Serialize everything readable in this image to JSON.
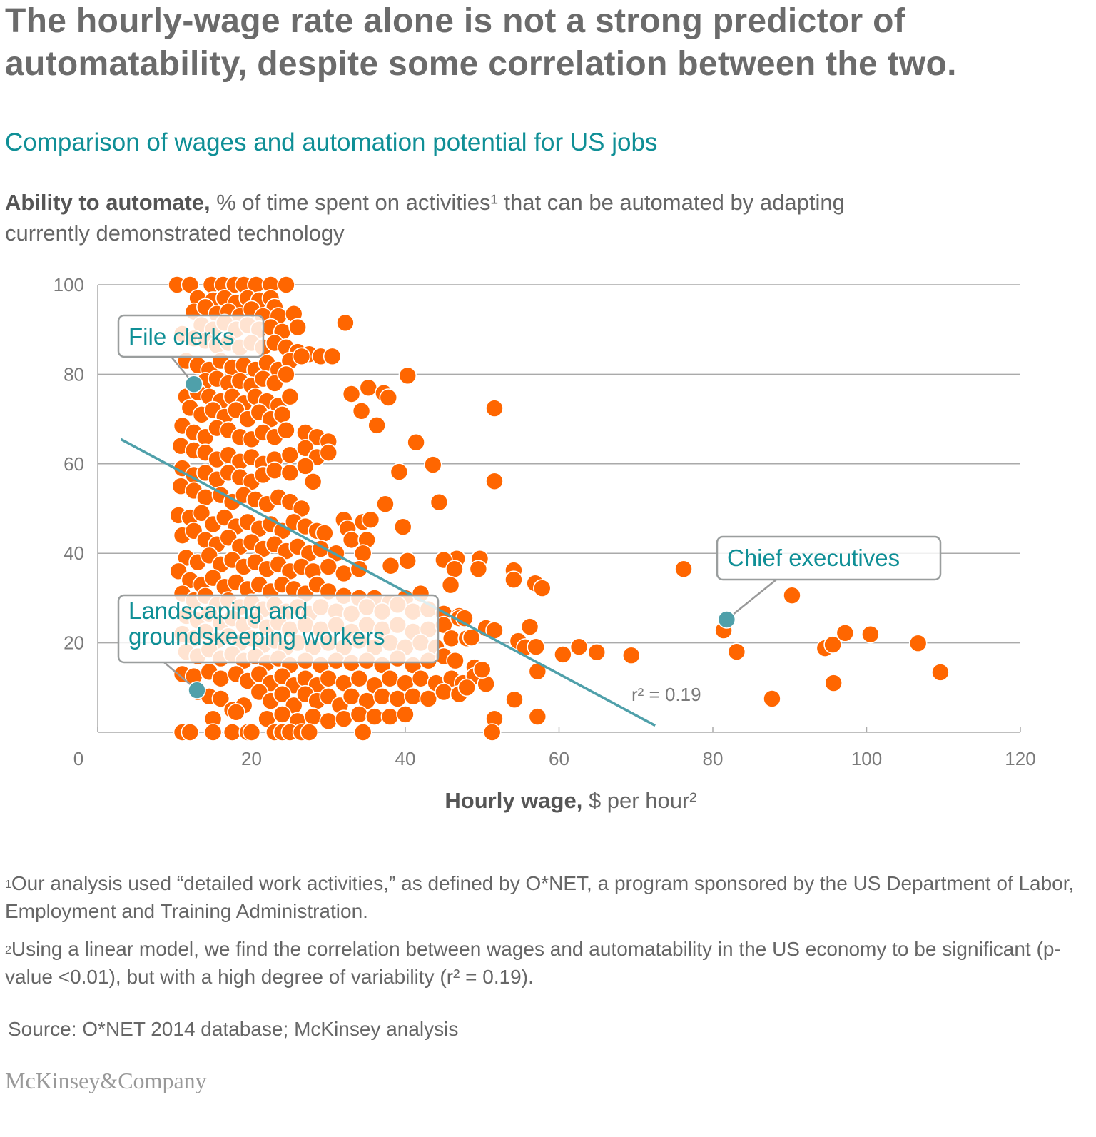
{
  "title": "The hourly-wage rate alone is not a strong predictor of automatability, despite some correlation between the two.",
  "subtitle": "Comparison of wages and automation potential for US jobs",
  "y_axis_label": {
    "bold": "Ability to automate,",
    "rest": " % of time spent on activities¹ that can be automated by adapting currently demonstrated technology"
  },
  "x_axis_label": {
    "bold": "Hourly wage,",
    "rest": " $ per hour²"
  },
  "footnotes": [
    {
      "mark": "1",
      "text": "Our analysis used “detailed work activities,” as defined by O*NET, a program sponsored by the US Department of Labor, Employment and Training Administration."
    },
    {
      "mark": "2",
      "text": "Using a linear model, we find the correlation between wages and automatability in the US economy to be significant (p-value <0.01), but with a high degree of variability (r² = 0.19)."
    }
  ],
  "source": "Source: O*NET 2014 database; McKinsey analysis",
  "logo": "McKinsey&Company",
  "chart_data": {
    "type": "scatter",
    "xlim": [
      0,
      120
    ],
    "ylim": [
      0,
      100
    ],
    "x_ticks": [
      0,
      20,
      40,
      60,
      80,
      100,
      120
    ],
    "y_ticks": [
      0,
      20,
      40,
      60,
      80,
      100
    ],
    "y_tick_labels": [
      "",
      "20",
      "40",
      "60",
      "80",
      "100"
    ],
    "x_tick_labels": [
      "0",
      "20",
      "40",
      "60",
      "80",
      "100",
      "120"
    ],
    "grid": "horizontal",
    "colors": {
      "points": "#FF6600",
      "highlight": "#4FA0AA",
      "trend": "#4FA0AA",
      "annotation_text": "#0F8F96"
    },
    "trendline": {
      "from": [
        3,
        65.5
      ],
      "to": [
        72.5,
        1.5
      ],
      "label": "r² = 0.19"
    },
    "highlights": [
      {
        "label": "File clerks",
        "x": 12.5,
        "y": 77.8
      },
      {
        "label": "Chief executives",
        "x": 81.8,
        "y": 25.2
      },
      {
        "label": "Landscaping and groundskeeping workers",
        "label_lines": [
          "Landscaping and",
          "groundskeeping workers"
        ],
        "x": 12.9,
        "y": 9.4
      }
    ],
    "points": [
      [
        10.3,
        100
      ],
      [
        12,
        100
      ],
      [
        14.8,
        100
      ],
      [
        16.3,
        100
      ],
      [
        17.8,
        100
      ],
      [
        19,
        100
      ],
      [
        20.6,
        100
      ],
      [
        22.5,
        100
      ],
      [
        24.5,
        100
      ],
      [
        13,
        97
      ],
      [
        15,
        96.5
      ],
      [
        16.5,
        97
      ],
      [
        18,
        96
      ],
      [
        19.5,
        97
      ],
      [
        21,
        96.5
      ],
      [
        22.5,
        97
      ],
      [
        23,
        95
      ],
      [
        12.5,
        94
      ],
      [
        14,
        95
      ],
      [
        15.5,
        93.5
      ],
      [
        17,
        94
      ],
      [
        18.5,
        93
      ],
      [
        20,
        94.5
      ],
      [
        21.5,
        93
      ],
      [
        23.5,
        93
      ],
      [
        25.5,
        93.5
      ],
      [
        13.5,
        91
      ],
      [
        15,
        90
      ],
      [
        16.5,
        91.5
      ],
      [
        18,
        90
      ],
      [
        19.5,
        91
      ],
      [
        21,
        90
      ],
      [
        22.5,
        90.5
      ],
      [
        24,
        89.5
      ],
      [
        26,
        90.5
      ],
      [
        11,
        89
      ],
      [
        12.5,
        88
      ],
      [
        14,
        87.5
      ],
      [
        15.5,
        86.5
      ],
      [
        17,
        87
      ],
      [
        18.5,
        86
      ],
      [
        20,
        87
      ],
      [
        21.5,
        86
      ],
      [
        23,
        87
      ],
      [
        24.5,
        86
      ],
      [
        26,
        85
      ],
      [
        27.5,
        84.5
      ],
      [
        29,
        84
      ],
      [
        30.5,
        84
      ],
      [
        32.2,
        91.5
      ],
      [
        11.5,
        83
      ],
      [
        13,
        82
      ],
      [
        14.5,
        81
      ],
      [
        16,
        83
      ],
      [
        17.5,
        81.5
      ],
      [
        19,
        82
      ],
      [
        20.5,
        81
      ],
      [
        22,
        82.5
      ],
      [
        23.5,
        81
      ],
      [
        25,
        83
      ],
      [
        26.5,
        84
      ],
      [
        14,
        78.5
      ],
      [
        15.5,
        79
      ],
      [
        17,
        78
      ],
      [
        18.5,
        78.5
      ],
      [
        20,
        77.5
      ],
      [
        21.5,
        79
      ],
      [
        23,
        78
      ],
      [
        24.5,
        80
      ],
      [
        11.5,
        75
      ],
      [
        13,
        76
      ],
      [
        14.5,
        75
      ],
      [
        16,
        74
      ],
      [
        17.5,
        75
      ],
      [
        19,
        73.5
      ],
      [
        20.5,
        75
      ],
      [
        22,
        74
      ],
      [
        23.5,
        73
      ],
      [
        25,
        75
      ],
      [
        12,
        72.5
      ],
      [
        13.5,
        71
      ],
      [
        15,
        72
      ],
      [
        16.5,
        70.5
      ],
      [
        18,
        72
      ],
      [
        19.5,
        70
      ],
      [
        21,
        71.5
      ],
      [
        22.5,
        70
      ],
      [
        24,
        71
      ],
      [
        11,
        68.5
      ],
      [
        12.5,
        67
      ],
      [
        14,
        66
      ],
      [
        15.5,
        68
      ],
      [
        17,
        67.5
      ],
      [
        18.5,
        66
      ],
      [
        20,
        65.5
      ],
      [
        21.5,
        67
      ],
      [
        23,
        66
      ],
      [
        24.5,
        67.5
      ],
      [
        27,
        67
      ],
      [
        28.5,
        66
      ],
      [
        30,
        65
      ],
      [
        10.8,
        64
      ],
      [
        12.5,
        63
      ],
      [
        14,
        62.5
      ],
      [
        15.5,
        61
      ],
      [
        17,
        62
      ],
      [
        18.5,
        60.5
      ],
      [
        20,
        61.5
      ],
      [
        21.5,
        60
      ],
      [
        23,
        61
      ],
      [
        25,
        62
      ],
      [
        27,
        63.5
      ],
      [
        28.5,
        61.5
      ],
      [
        30,
        62.5
      ],
      [
        11,
        59
      ],
      [
        12.5,
        57.5
      ],
      [
        14,
        58
      ],
      [
        15.5,
        56.5
      ],
      [
        17,
        58
      ],
      [
        18.5,
        57
      ],
      [
        20,
        56
      ],
      [
        21.5,
        57.5
      ],
      [
        23,
        58.5
      ],
      [
        25,
        58
      ],
      [
        27,
        59.5
      ],
      [
        28,
        56
      ],
      [
        10.8,
        55
      ],
      [
        12.5,
        54
      ],
      [
        14,
        52.5
      ],
      [
        16,
        53
      ],
      [
        17.5,
        51.5
      ],
      [
        19,
        53
      ],
      [
        20.5,
        52
      ],
      [
        22,
        51
      ],
      [
        23.5,
        52.5
      ],
      [
        25,
        51.5
      ],
      [
        26.5,
        50
      ],
      [
        10.5,
        48.5
      ],
      [
        12,
        48
      ],
      [
        13.5,
        49
      ],
      [
        15,
        46.5
      ],
      [
        16.5,
        48
      ],
      [
        18,
        46
      ],
      [
        19.5,
        47
      ],
      [
        21,
        45.5
      ],
      [
        22.5,
        46.5
      ],
      [
        24,
        45
      ],
      [
        25.5,
        47
      ],
      [
        27,
        46
      ],
      [
        28.5,
        45
      ],
      [
        29.5,
        44.5
      ],
      [
        32,
        47.5
      ],
      [
        32.5,
        45.5
      ],
      [
        34.5,
        47
      ],
      [
        35.5,
        47.5
      ],
      [
        11,
        44
      ],
      [
        12.5,
        45
      ],
      [
        14,
        43
      ],
      [
        15.5,
        42
      ],
      [
        17,
        43.5
      ],
      [
        18.5,
        41.5
      ],
      [
        20,
        42.5
      ],
      [
        21.5,
        41
      ],
      [
        23,
        42
      ],
      [
        24.5,
        40.5
      ],
      [
        26,
        41.5
      ],
      [
        27.5,
        40
      ],
      [
        29,
        41
      ],
      [
        31,
        40
      ],
      [
        33,
        43
      ],
      [
        35,
        43
      ],
      [
        34.5,
        40
      ],
      [
        11.5,
        39
      ],
      [
        13,
        38
      ],
      [
        14.5,
        39.5
      ],
      [
        16,
        37.5
      ],
      [
        17.5,
        38.5
      ],
      [
        19,
        37
      ],
      [
        20.5,
        38
      ],
      [
        22,
        36.5
      ],
      [
        23.5,
        37.5
      ],
      [
        25,
        36
      ],
      [
        26.5,
        37
      ],
      [
        28,
        36
      ],
      [
        30,
        37
      ],
      [
        32,
        35.5
      ],
      [
        34,
        36.5
      ],
      [
        10.5,
        36
      ],
      [
        12,
        34
      ],
      [
        13.5,
        33
      ],
      [
        15,
        34.5
      ],
      [
        16.5,
        32.5
      ],
      [
        18,
        33.5
      ],
      [
        19.5,
        32
      ],
      [
        21,
        33
      ],
      [
        22.5,
        31.5
      ],
      [
        24,
        33
      ],
      [
        25.5,
        32
      ],
      [
        27,
        31
      ],
      [
        28.5,
        33
      ],
      [
        30,
        31.5
      ],
      [
        32,
        30.5
      ],
      [
        34,
        30
      ],
      [
        36,
        30
      ],
      [
        38,
        29
      ],
      [
        40,
        30
      ],
      [
        42,
        31
      ],
      [
        11,
        31
      ],
      [
        12.5,
        29.5
      ],
      [
        14,
        30.5
      ],
      [
        15.5,
        28.5
      ],
      [
        17,
        29.5
      ],
      [
        18.5,
        28
      ],
      [
        20,
        29
      ],
      [
        21.5,
        27.5
      ],
      [
        23,
        28.5
      ],
      [
        24.5,
        27
      ],
      [
        26,
        28
      ],
      [
        27.5,
        26.5
      ],
      [
        29,
        28
      ],
      [
        31,
        27
      ],
      [
        33,
        26.5
      ],
      [
        35,
        28
      ],
      [
        37,
        27
      ],
      [
        39,
        28.5
      ],
      [
        41,
        27
      ],
      [
        43,
        27.5
      ],
      [
        45,
        26.5
      ],
      [
        47,
        26
      ],
      [
        11.5,
        26
      ],
      [
        13,
        25
      ],
      [
        14.5,
        26.5
      ],
      [
        16,
        24.5
      ],
      [
        17.5,
        25.5
      ],
      [
        19,
        24
      ],
      [
        20.5,
        25
      ],
      [
        22,
        23.5
      ],
      [
        23.5,
        24.5
      ],
      [
        25,
        23
      ],
      [
        27,
        24
      ],
      [
        29,
        23
      ],
      [
        31,
        24
      ],
      [
        33,
        22.5
      ],
      [
        35,
        24
      ],
      [
        37,
        23
      ],
      [
        39,
        24
      ],
      [
        41,
        22.5
      ],
      [
        43,
        23
      ],
      [
        45,
        24
      ],
      [
        47,
        25.5
      ],
      [
        11,
        22
      ],
      [
        12.5,
        21
      ],
      [
        14,
        22.5
      ],
      [
        15.5,
        20.5
      ],
      [
        17,
        21.5
      ],
      [
        18.5,
        20
      ],
      [
        20,
        21
      ],
      [
        21.5,
        19.5
      ],
      [
        23,
        20.5
      ],
      [
        24.5,
        19
      ],
      [
        26,
        20
      ],
      [
        28,
        19
      ],
      [
        30,
        20
      ],
      [
        32,
        19
      ],
      [
        34,
        20.5
      ],
      [
        36,
        19
      ],
      [
        38,
        20
      ],
      [
        40,
        19
      ],
      [
        42,
        20
      ],
      [
        44,
        19
      ],
      [
        46,
        21
      ],
      [
        48,
        21
      ],
      [
        11.5,
        18
      ],
      [
        13,
        17
      ],
      [
        14.5,
        18.5
      ],
      [
        16,
        16.5
      ],
      [
        17.5,
        17.5
      ],
      [
        19,
        16
      ],
      [
        20.5,
        17
      ],
      [
        22,
        15.5
      ],
      [
        23.5,
        16.5
      ],
      [
        25,
        15
      ],
      [
        27,
        16
      ],
      [
        29,
        15
      ],
      [
        31,
        16
      ],
      [
        33,
        15.5
      ],
      [
        35,
        16
      ],
      [
        37,
        15
      ],
      [
        39,
        16.5
      ],
      [
        41,
        15
      ],
      [
        43,
        16
      ],
      [
        45,
        17
      ],
      [
        46.5,
        16
      ],
      [
        49,
        14.5
      ],
      [
        11,
        13
      ],
      [
        12.5,
        12.5
      ],
      [
        14.5,
        13.5
      ],
      [
        16,
        12
      ],
      [
        18,
        13
      ],
      [
        19.5,
        11.5
      ],
      [
        21,
        13
      ],
      [
        22.5,
        11
      ],
      [
        24,
        12.5
      ],
      [
        25.5,
        10.5
      ],
      [
        27,
        12
      ],
      [
        28.5,
        10.5
      ],
      [
        30,
        12
      ],
      [
        32,
        11
      ],
      [
        34,
        12
      ],
      [
        36,
        10.5
      ],
      [
        38,
        12
      ],
      [
        40,
        11
      ],
      [
        42,
        12
      ],
      [
        44,
        11
      ],
      [
        46,
        12
      ],
      [
        47.5,
        11
      ],
      [
        49,
        12.5
      ],
      [
        13,
        9
      ],
      [
        14.5,
        8
      ],
      [
        16,
        7.5
      ],
      [
        17.5,
        5
      ],
      [
        19,
        6
      ],
      [
        21,
        9
      ],
      [
        22.5,
        7
      ],
      [
        24,
        8.5
      ],
      [
        25.5,
        6
      ],
      [
        27,
        8.5
      ],
      [
        28.5,
        7
      ],
      [
        30,
        8
      ],
      [
        31.5,
        6
      ],
      [
        33,
        8
      ],
      [
        35,
        7
      ],
      [
        37,
        8
      ],
      [
        39,
        7.5
      ],
      [
        41,
        8
      ],
      [
        43,
        7.5
      ],
      [
        45,
        9
      ],
      [
        47,
        8.5
      ],
      [
        48,
        10
      ],
      [
        15,
        3
      ],
      [
        18,
        4.5
      ],
      [
        22,
        3
      ],
      [
        24,
        4
      ],
      [
        26,
        2.5
      ],
      [
        28,
        3.5
      ],
      [
        30,
        2.5
      ],
      [
        32,
        3
      ],
      [
        34,
        4
      ],
      [
        36,
        3.5
      ],
      [
        38,
        3.5
      ],
      [
        40,
        4
      ],
      [
        11,
        0
      ],
      [
        12,
        0
      ],
      [
        15,
        0
      ],
      [
        17.5,
        0
      ],
      [
        19.5,
        0
      ],
      [
        20,
        0
      ],
      [
        23,
        0
      ],
      [
        24,
        0
      ],
      [
        25,
        0
      ],
      [
        26.5,
        0
      ],
      [
        27.5,
        0
      ],
      [
        34.5,
        0
      ],
      [
        40.3,
        79.7
      ],
      [
        33,
        75.6
      ],
      [
        34.3,
        71.8
      ],
      [
        35.2,
        77
      ],
      [
        37.2,
        75.8
      ],
      [
        37.8,
        74.8
      ],
      [
        36.3,
        68.6
      ],
      [
        41.4,
        64.8
      ],
      [
        39.2,
        58.2
      ],
      [
        43.6,
        59.8
      ],
      [
        44.4,
        51.4
      ],
      [
        37.4,
        51
      ],
      [
        39.7,
        45.9
      ],
      [
        51.6,
        72.4
      ],
      [
        51.6,
        56.1
      ],
      [
        40.3,
        38.3
      ],
      [
        38.1,
        37.2
      ],
      [
        46.7,
        38.8
      ],
      [
        45,
        38.5
      ],
      [
        49.7,
        38.8
      ],
      [
        46.4,
        36.5
      ],
      [
        45.9,
        32.9
      ],
      [
        49.5,
        36.5
      ],
      [
        54.1,
        36.2
      ],
      [
        54.1,
        34.1
      ],
      [
        56.9,
        33.3
      ],
      [
        57.8,
        32.2
      ],
      [
        47.7,
        25.5
      ],
      [
        48.6,
        21.2
      ],
      [
        50.5,
        23.3
      ],
      [
        51.6,
        22.8
      ],
      [
        56.2,
        23.6
      ],
      [
        54.7,
        20.4
      ],
      [
        55.6,
        19
      ],
      [
        57,
        19.1
      ],
      [
        57.2,
        13.6
      ],
      [
        57.2,
        3.5
      ],
      [
        54.2,
        7.3
      ],
      [
        51.6,
        3
      ],
      [
        51.3,
        0
      ],
      [
        50.5,
        10.8
      ],
      [
        50,
        14
      ],
      [
        60.5,
        17.4
      ],
      [
        62.6,
        19.1
      ],
      [
        64.9,
        17.9
      ],
      [
        69.4,
        17.2
      ],
      [
        76.2,
        36.5
      ],
      [
        81.4,
        22.8
      ],
      [
        83.1,
        18
      ],
      [
        87.7,
        7.5
      ],
      [
        90.3,
        30.6
      ],
      [
        94.6,
        18.8
      ],
      [
        95.6,
        19.6
      ],
      [
        97.2,
        22.2
      ],
      [
        100.5,
        21.9
      ],
      [
        106.7,
        19.9
      ],
      [
        109.6,
        13.4
      ],
      [
        95.7,
        11
      ]
    ]
  }
}
